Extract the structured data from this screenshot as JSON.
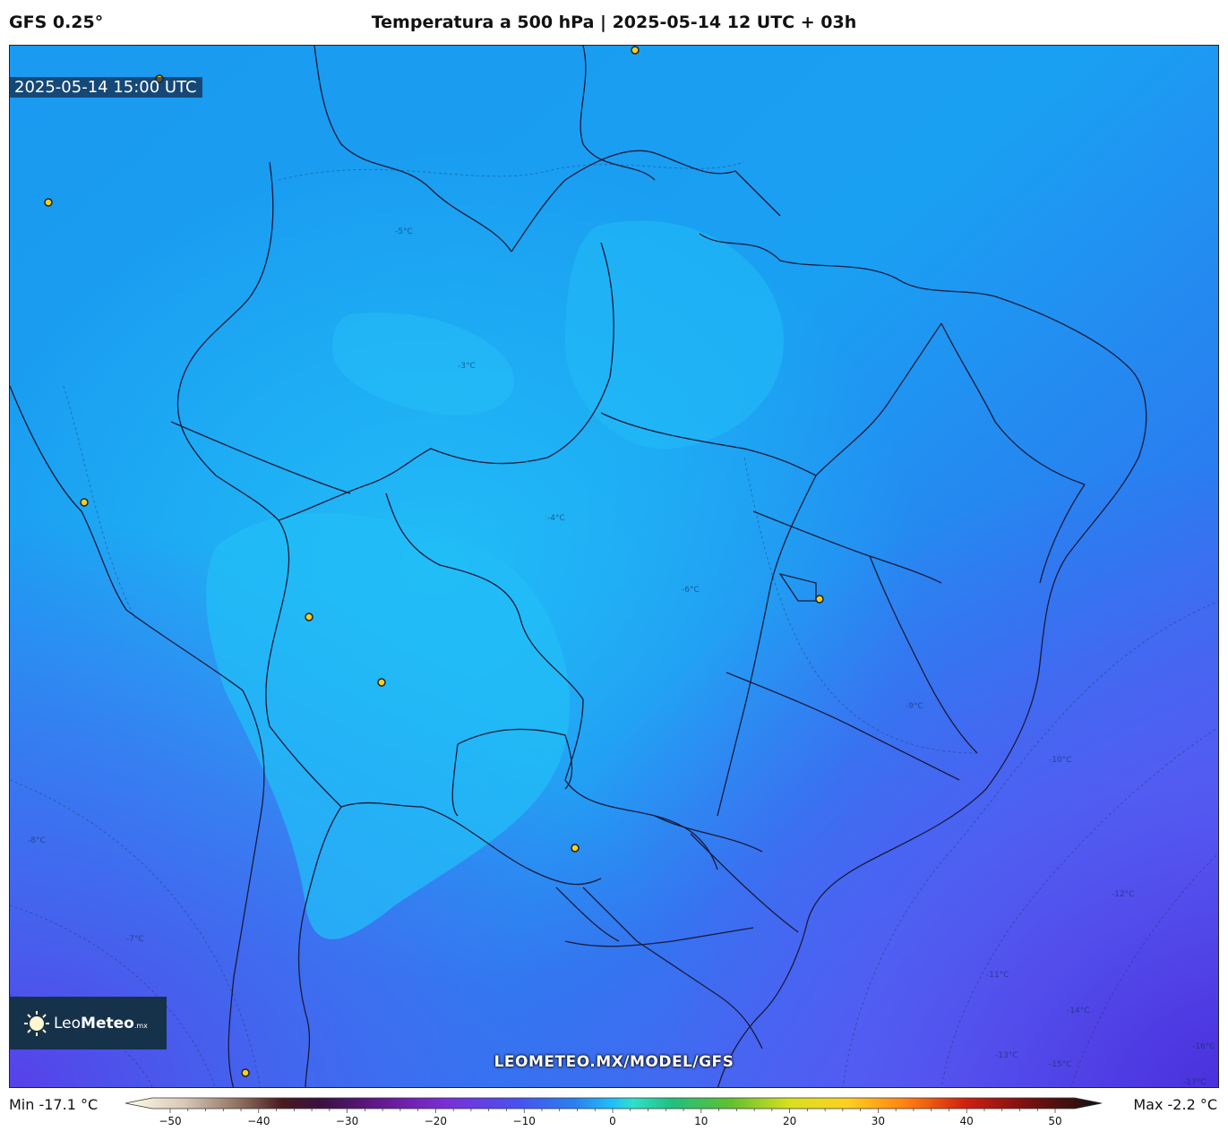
{
  "header": {
    "model": "GFS 0.25°",
    "title": "Temperatura a 500 hPa | 2025-05-14 12 UTC + 03h"
  },
  "map": {
    "valid_time": "2025-05-14 15:00 UTC",
    "watermark_url": "LEOMETEO.MX/MODEL/GFS",
    "contour_labels": [
      "-3°C",
      "-4°C",
      "-5°C",
      "-6°C",
      "-7°C",
      "-8°C",
      "-9°C",
      "-10°C",
      "-11°C",
      "-12°C",
      "-13°C",
      "-14°C",
      "-15°C",
      "-16°C",
      "-17°C"
    ],
    "colors": {
      "warm_cyan": "#1fb8f5",
      "mid_blue": "#1a9af0",
      "cool_blue": "#2a7df0",
      "cold_indigo": "#4a60f2",
      "coldest_violet": "#4d3ae0",
      "border_line": "#1a1a3a"
    }
  },
  "logo": {
    "name_light": "Leo",
    "name_bold": "Meteo",
    "suffix": ".mx",
    "icon": "sun-icon"
  },
  "legend": {
    "min_text": "Min -17.1 °C",
    "max_text": "Max -2.2 °C",
    "ticks": [
      -50,
      -40,
      -30,
      -20,
      -10,
      0,
      10,
      20,
      30,
      40,
      50
    ],
    "tick_labels": [
      "−50",
      "−40",
      "−30",
      "−20",
      "−10",
      "0",
      "10",
      "20",
      "30",
      "40",
      "50"
    ]
  }
}
